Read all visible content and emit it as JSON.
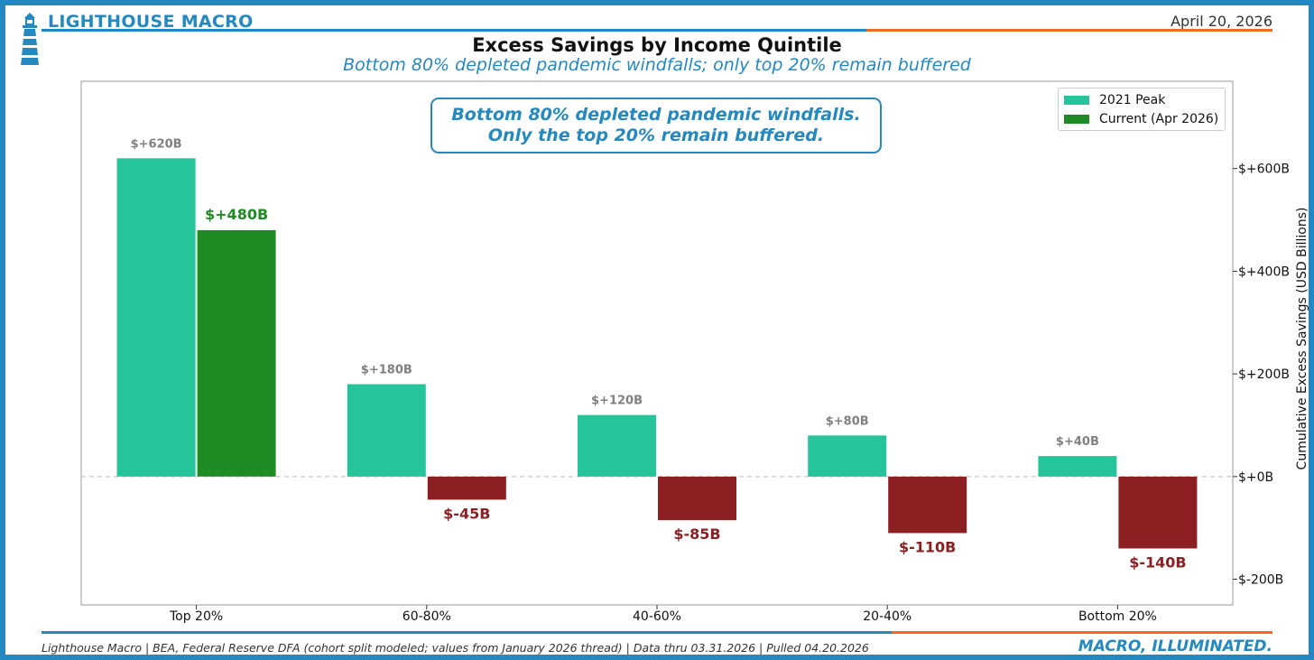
{
  "header": {
    "brand": "LIGHTHOUSE MACRO",
    "date": "April 20, 2026",
    "title": "Excess Savings by Income Quintile",
    "subtitle": "Bottom 80% depleted pandemic windfalls; only top 20% remain buffered"
  },
  "annotation": {
    "text": "Bottom 80% depleted pandemic windfalls.\nOnly the top 20% remain buffered."
  },
  "footer": {
    "source": "Lighthouse Macro | BEA, Federal Reserve DFA (cohort split modeled; values from January 2026 thread) | Data thru 03.31.2026 | Pulled 04.20.2026",
    "tagline": "MACRO, ILLUMINATED."
  },
  "colors": {
    "brand_blue": "#2389c0",
    "accent_orange": "#f26b21",
    "peak": "#26c49a",
    "current_positive": "#1f8b24",
    "current_negative": "#8b1f22"
  },
  "chart_data": {
    "type": "bar",
    "categories": [
      "Top 20%",
      "60-80%",
      "40-60%",
      "20-40%",
      "Bottom 20%"
    ],
    "series": [
      {
        "name": "2021 Peak",
        "values": [
          620,
          180,
          120,
          80,
          40
        ],
        "labels": [
          "$+620B",
          "$+180B",
          "$+120B",
          "$+80B",
          "$+40B"
        ]
      },
      {
        "name": "Current (Apr 2026)",
        "values": [
          480,
          -45,
          -85,
          -110,
          -140
        ],
        "labels": [
          "$+480B",
          "$-45B",
          "$-85B",
          "$-110B",
          "$-140B"
        ]
      }
    ],
    "ylabel": "Cumulative Excess Savings (USD Billions)",
    "y_axis_side": "right",
    "ylim": [
      -250,
      770
    ],
    "yticks": [
      -200,
      0,
      200,
      400,
      600
    ],
    "ytick_labels": [
      "$-200B",
      "$+0B",
      "$+200B",
      "$+400B",
      "$+600B"
    ],
    "zero_line": "dashed",
    "grid": false,
    "legend_position": "top-right"
  }
}
